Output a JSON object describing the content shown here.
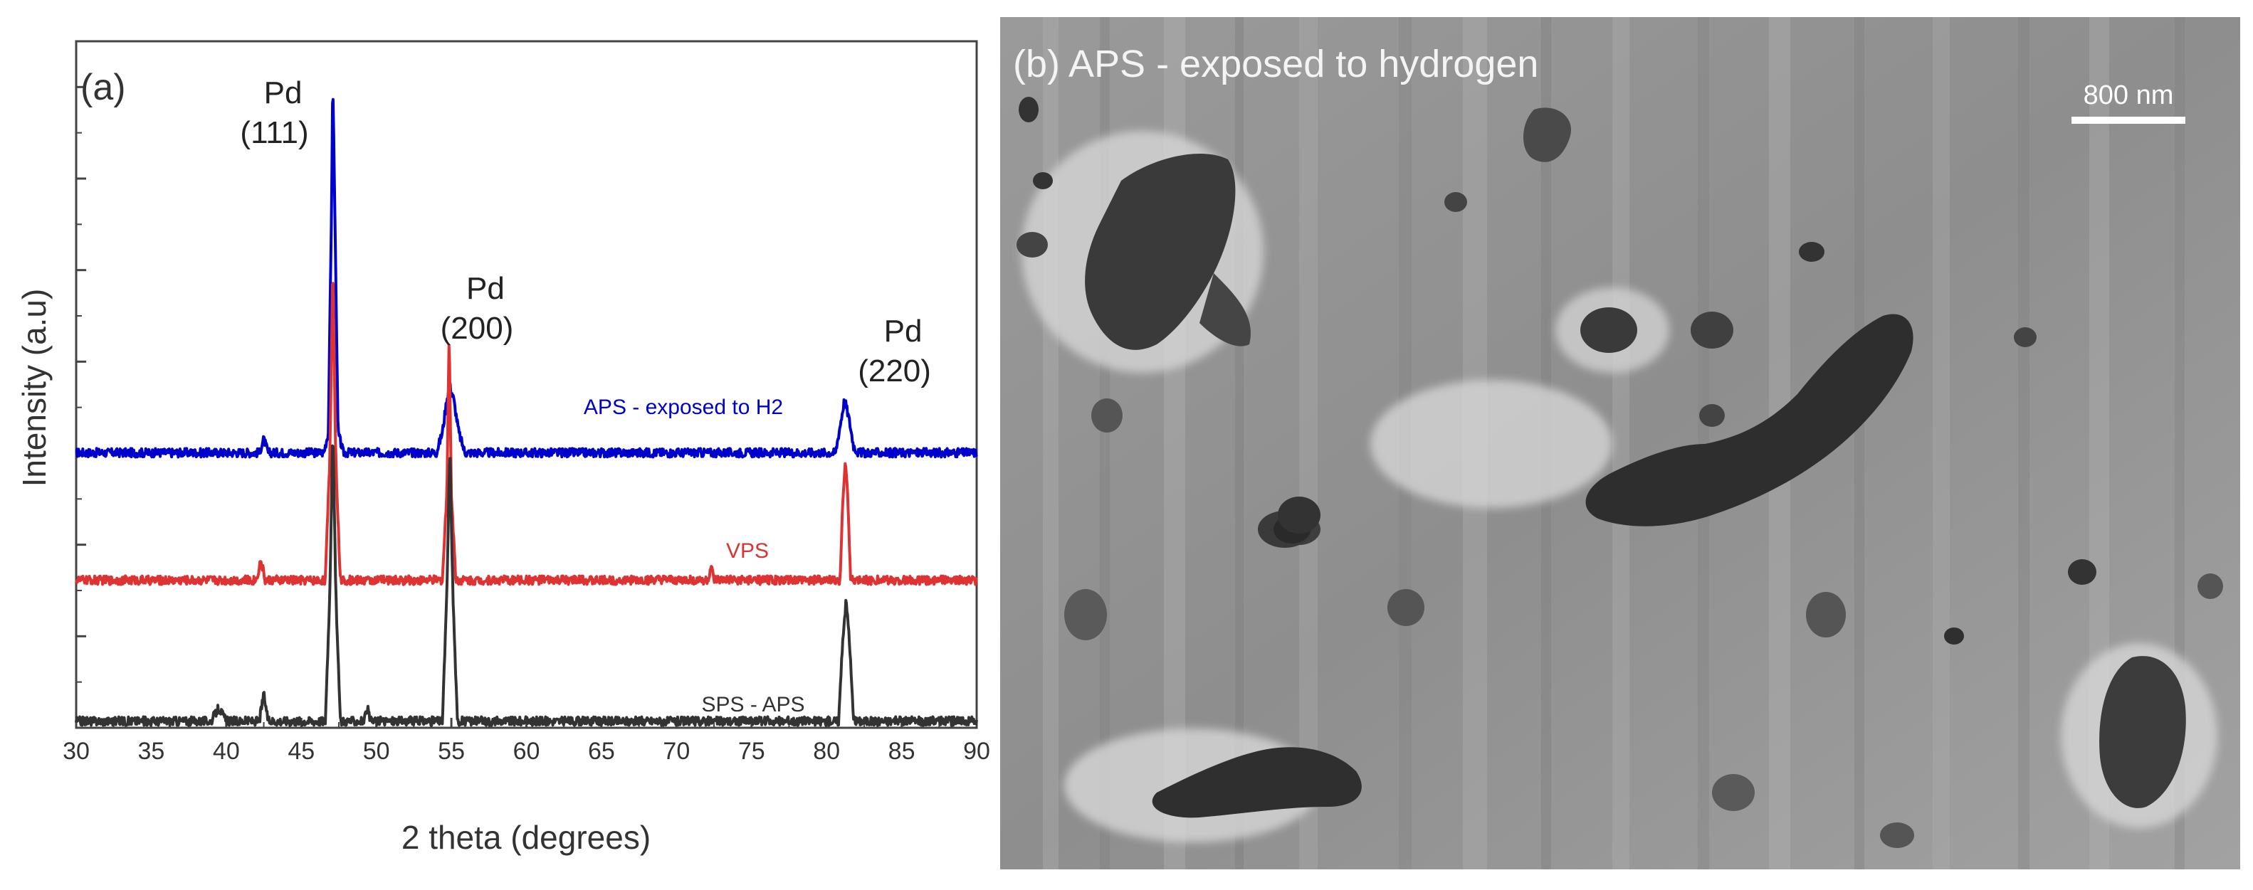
{
  "chart_data": {
    "type": "line",
    "panel_label": "(a)",
    "xlabel": "2 theta (degrees)",
    "ylabel": "Intensity (a.u)",
    "xlim": [
      30,
      90
    ],
    "xticks": [
      30,
      35,
      40,
      45,
      50,
      55,
      60,
      65,
      70,
      75,
      80,
      85,
      90
    ],
    "ylim": [
      0,
      100
    ],
    "grid": false,
    "peaks": [
      {
        "label": "Pd",
        "hkl": "(111)",
        "two_theta": 47.1
      },
      {
        "label": "Pd",
        "hkl": "(200)",
        "two_theta": 54.9
      },
      {
        "label": "Pd",
        "hkl": "(220)",
        "two_theta": 81.3
      }
    ],
    "series": [
      {
        "name": "APS - exposed to H2",
        "color": "#0000cc",
        "baseline": 41,
        "points": [
          [
            30,
            41
          ],
          [
            40,
            41
          ],
          [
            42.2,
            41
          ],
          [
            42.5,
            43
          ],
          [
            42.8,
            41
          ],
          [
            46.5,
            41
          ],
          [
            46.8,
            44
          ],
          [
            47.0,
            75
          ],
          [
            47.1,
            97
          ],
          [
            47.25,
            75
          ],
          [
            47.45,
            44
          ],
          [
            47.8,
            41
          ],
          [
            54.0,
            41
          ],
          [
            54.4,
            44
          ],
          [
            54.7,
            49
          ],
          [
            54.9,
            51
          ],
          [
            55.15,
            49
          ],
          [
            55.5,
            44
          ],
          [
            55.9,
            41
          ],
          [
            80.6,
            41
          ],
          [
            80.9,
            45
          ],
          [
            81.2,
            49
          ],
          [
            81.5,
            46
          ],
          [
            81.8,
            42
          ],
          [
            82.1,
            41
          ],
          [
            90,
            41
          ]
        ]
      },
      {
        "name": "VPS",
        "color": "#dd3333",
        "baseline": 22,
        "points": [
          [
            30,
            22
          ],
          [
            42.0,
            22
          ],
          [
            42.3,
            25
          ],
          [
            42.6,
            22
          ],
          [
            46.6,
            22
          ],
          [
            46.9,
            40
          ],
          [
            47.1,
            69
          ],
          [
            47.3,
            40
          ],
          [
            47.6,
            22
          ],
          [
            54.4,
            22
          ],
          [
            54.7,
            35
          ],
          [
            54.85,
            59
          ],
          [
            55.0,
            35
          ],
          [
            55.3,
            22
          ],
          [
            72.1,
            22
          ],
          [
            72.3,
            24
          ],
          [
            72.5,
            22
          ],
          [
            80.9,
            22
          ],
          [
            81.1,
            35
          ],
          [
            81.25,
            40
          ],
          [
            81.4,
            35
          ],
          [
            81.6,
            22
          ],
          [
            90,
            22
          ]
        ]
      },
      {
        "name": "SPS - APS",
        "color": "#333333",
        "baseline": 1,
        "points": [
          [
            30,
            1
          ],
          [
            39.0,
            1
          ],
          [
            39.5,
            3
          ],
          [
            40.0,
            1
          ],
          [
            42.2,
            1
          ],
          [
            42.5,
            5
          ],
          [
            42.8,
            1
          ],
          [
            46.6,
            1
          ],
          [
            46.9,
            20
          ],
          [
            47.1,
            45
          ],
          [
            47.3,
            20
          ],
          [
            47.6,
            1
          ],
          [
            49.2,
            1
          ],
          [
            49.4,
            3
          ],
          [
            49.6,
            1
          ],
          [
            54.4,
            1
          ],
          [
            54.7,
            20
          ],
          [
            54.9,
            42
          ],
          [
            55.1,
            20
          ],
          [
            55.4,
            1
          ],
          [
            80.8,
            1
          ],
          [
            81.1,
            14
          ],
          [
            81.3,
            19
          ],
          [
            81.5,
            14
          ],
          [
            81.8,
            1
          ],
          [
            90,
            1
          ]
        ]
      }
    ]
  },
  "sem": {
    "panel_label": "(b) APS - exposed to hydrogen",
    "scale_bar_label": "800 nm"
  }
}
